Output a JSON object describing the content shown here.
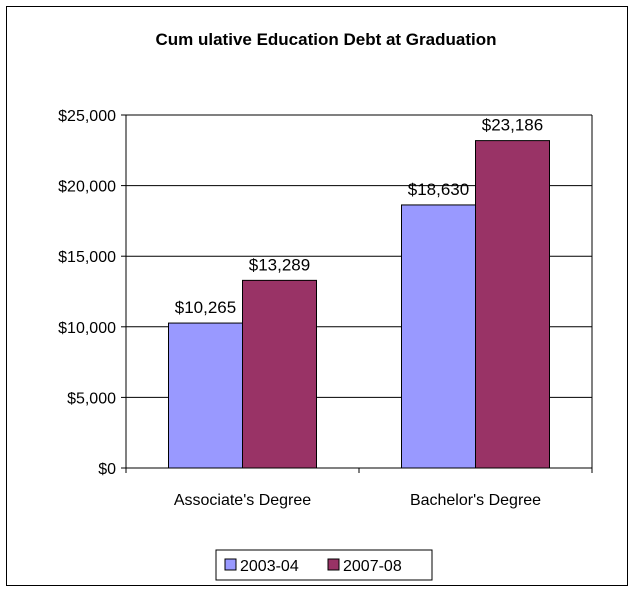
{
  "chart_data": {
    "type": "bar",
    "title": "Cum ulative Education Debt at Graduation",
    "categories": [
      "Associate's Degree",
      "Bachelor's Degree"
    ],
    "series": [
      {
        "name": "2003-04",
        "values": [
          10265,
          18630
        ],
        "labels": [
          "$10,265",
          "$18,630"
        ],
        "color": "#9999ff"
      },
      {
        "name": "2007-08",
        "values": [
          13289,
          23186
        ],
        "labels": [
          "$13,289",
          "$23,186"
        ],
        "color": "#993366"
      }
    ],
    "ylim": [
      0,
      25000
    ],
    "yticks": [
      0,
      5000,
      10000,
      15000,
      20000,
      25000
    ],
    "ytick_labels": [
      "$0",
      "$5,000",
      "$10,000",
      "$15,000",
      "$20,000",
      "$25,000"
    ],
    "xlabel": "",
    "ylabel": "",
    "grid": true,
    "legend_position": "bottom"
  }
}
